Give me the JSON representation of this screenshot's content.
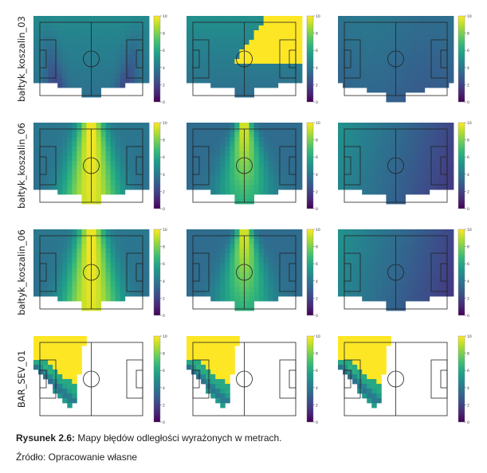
{
  "figure": {
    "caption_label": "Rysunek 2.6:",
    "caption_text": " Mapy błędów odległości wyrażonych w metrach.",
    "source": "Źródło: Opracowanie własne"
  },
  "chart_data": {
    "type": "heatmap",
    "colormap": "viridis",
    "colorbar_range": [
      0,
      10
    ],
    "colorbar_ticks": [
      "10",
      "8",
      "6",
      "4",
      "2",
      "0"
    ],
    "rows": [
      {
        "label": "bałtyk_koszalin_03",
        "panels": [
          {
            "pattern": "dual_cones_low",
            "base_error": 3.5
          },
          {
            "pattern": "high_top_band",
            "base_error": 4.0
          },
          {
            "pattern": "uniform_low",
            "base_error": 3.0
          }
        ]
      },
      {
        "label": "bałtyk_koszalin_06",
        "panels": [
          {
            "pattern": "central_high",
            "base_error": 5.5
          },
          {
            "pattern": "central_spike",
            "base_error": 4.5
          },
          {
            "pattern": "gradient_right_low",
            "base_error": 3.5
          }
        ]
      },
      {
        "label": "bałtyk_koszalin_06",
        "panels": [
          {
            "pattern": "central_high",
            "base_error": 5.5
          },
          {
            "pattern": "central_spike",
            "base_error": 4.5
          },
          {
            "pattern": "gradient_right_low",
            "base_error": 3.5
          }
        ]
      },
      {
        "label": "BAR_SEV_01",
        "panels": [
          {
            "pattern": "left_wedge",
            "base_error": 10
          },
          {
            "pattern": "left_wedge",
            "base_error": 10
          },
          {
            "pattern": "left_wedge",
            "base_error": 10
          }
        ]
      }
    ]
  }
}
